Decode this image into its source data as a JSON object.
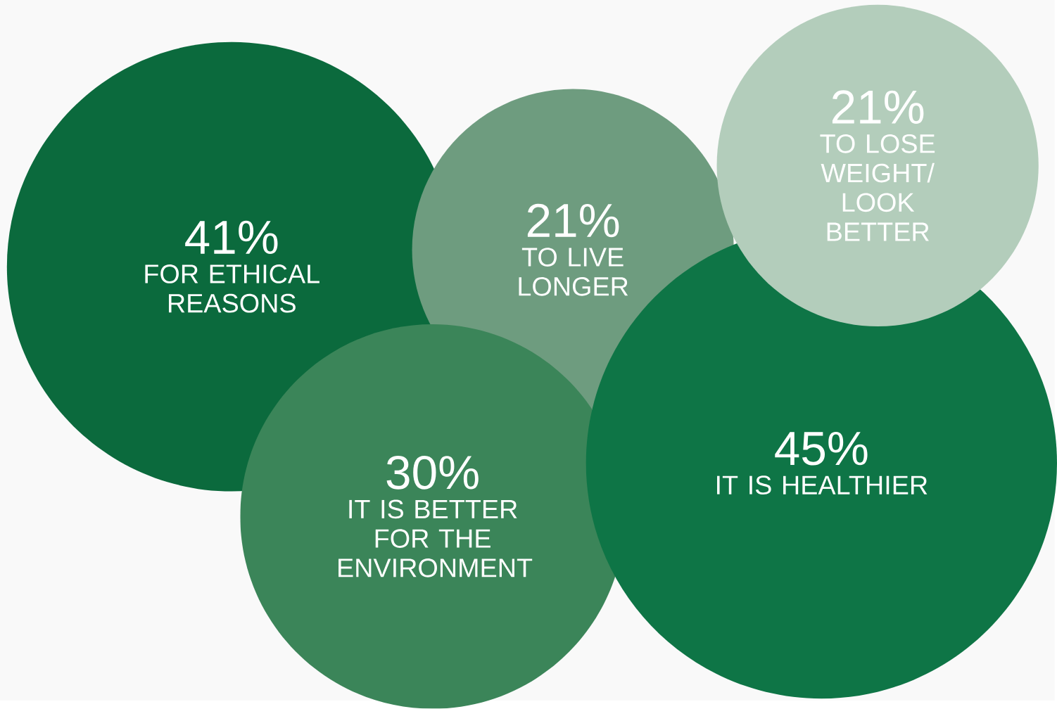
{
  "chart_data": {
    "type": "other",
    "categories": [
      "FOR ETHICAL REASONS",
      "TO LIVE LONGER",
      "IT IS BETTER FOR THE ENVIRONMENT",
      "IT IS HEALTHIER",
      "TO LOSE WEIGHT/ LOOK BETTER"
    ],
    "values": [
      41,
      21,
      30,
      45,
      21
    ],
    "value_labels": [
      "41%",
      "21%",
      "30%",
      "45%",
      "21%"
    ],
    "colors": [
      "#0b6a3d",
      "#6e9c7f",
      "#3b8559",
      "#0e7546",
      "#b3cdbb"
    ]
  }
}
